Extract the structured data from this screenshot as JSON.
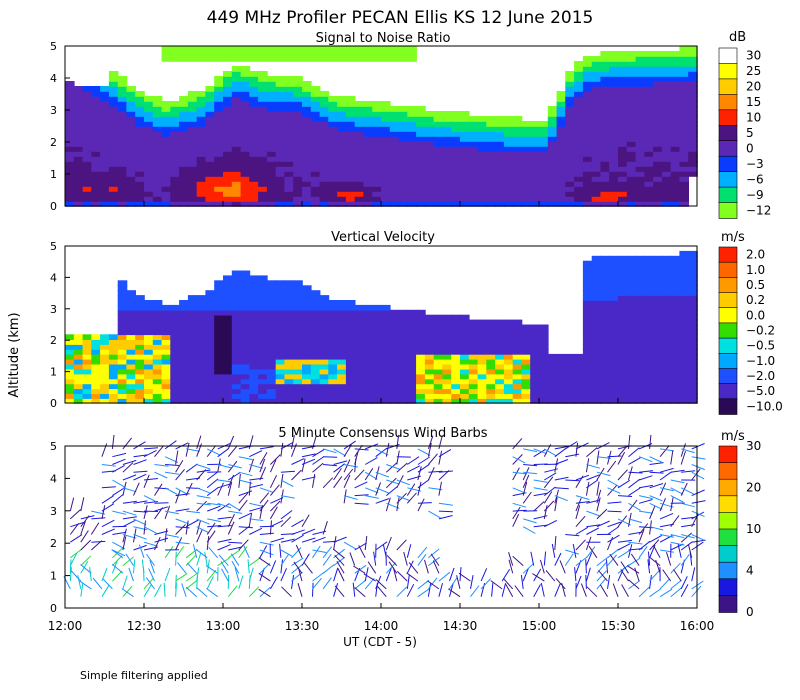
{
  "title": "449 MHz Profiler PECAN Ellis KS 12 June 2015",
  "ylabel": "Altitude (km)",
  "xlabel": "UT  (CDT - 5)",
  "footnote": "Simple filtering applied",
  "x_ticks": [
    "12:00",
    "12:30",
    "13:00",
    "13:30",
    "14:00",
    "14:30",
    "15:00",
    "15:30",
    "16:00"
  ],
  "y_ticks": [
    "0",
    "1",
    "2",
    "3",
    "4",
    "5"
  ],
  "chart_data": [
    {
      "type": "heatmap",
      "title": "Signal to Noise Ratio",
      "colorbar_unit": "dB",
      "colorbar_ticks": [
        "30",
        "25",
        "20",
        "15",
        "10",
        "5",
        "0",
        "−3",
        "−6",
        "−9",
        "−12"
      ],
      "colorbar_colors": [
        "#ffffff",
        "#ffff00",
        "#ffcc00",
        "#ff8800",
        "#ff2200",
        "#4c1480",
        "#5a28b4",
        "#0a3cff",
        "#00b0ff",
        "#00e070",
        "#80ff20"
      ],
      "xlim": [
        "12:00",
        "16:00"
      ],
      "ylim": [
        0,
        5
      ]
    },
    {
      "type": "heatmap",
      "title": "Vertical Velocity",
      "colorbar_unit": "m/s",
      "colorbar_ticks": [
        "2.0",
        "1.0",
        "0.5",
        "0.2",
        "0.0",
        "−0.2",
        "−0.5",
        "−1.0",
        "−2.0",
        "−5.0",
        "−10.0"
      ],
      "colorbar_colors": [
        "#ff2200",
        "#ff6600",
        "#ff9900",
        "#ffcc00",
        "#ffff00",
        "#33dd00",
        "#00e0e0",
        "#00a8ff",
        "#1e50ff",
        "#4a28c8",
        "#2a0a55"
      ],
      "xlim": [
        "12:00",
        "16:00"
      ],
      "ylim": [
        0,
        5
      ]
    },
    {
      "type": "scatter",
      "title": "5 Minute Consensus Wind Barbs",
      "colorbar_unit": "m/s",
      "colorbar_ticks": [
        "30",
        "20",
        "10",
        "4",
        "0"
      ],
      "colorbar_colors": [
        "#ff2200",
        "#ff6a00",
        "#ffaa00",
        "#ffdd00",
        "#a0ff00",
        "#20e040",
        "#00cccc",
        "#1e90ff",
        "#1818e0",
        "#3c1488"
      ],
      "xlim": [
        "12:00",
        "16:00"
      ],
      "ylim": [
        0,
        5
      ]
    }
  ]
}
